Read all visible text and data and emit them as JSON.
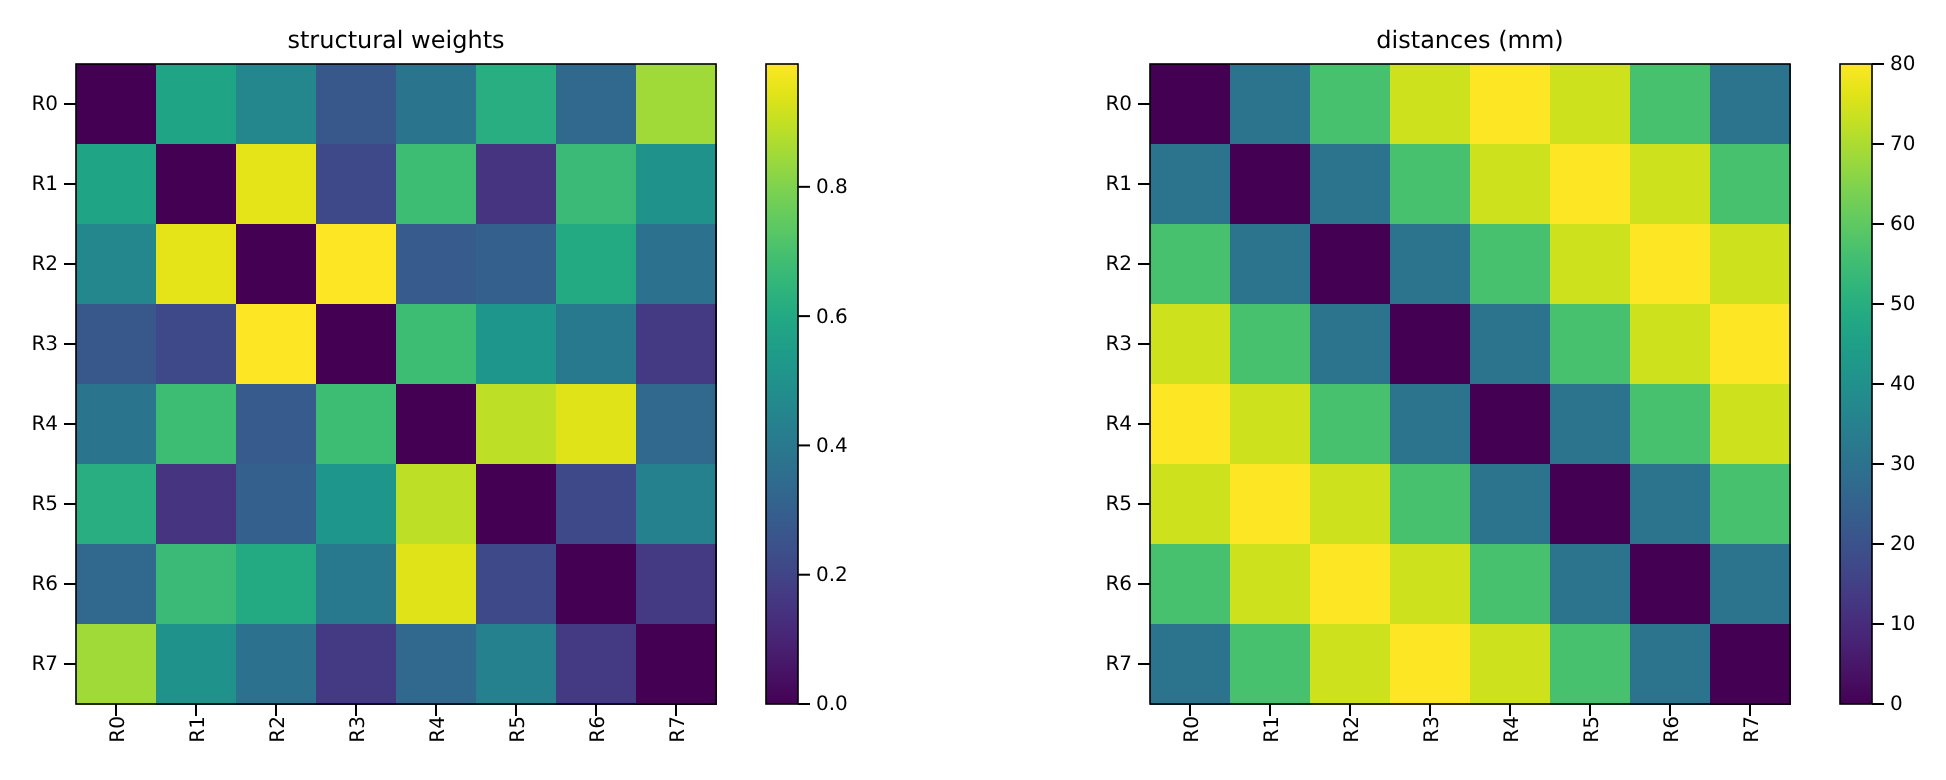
{
  "chart_data": [
    {
      "type": "heatmap",
      "title": "structural weights",
      "categories": [
        "R0",
        "R1",
        "R2",
        "R3",
        "R4",
        "R5",
        "R6",
        "R7"
      ],
      "y_categories": [
        "R0",
        "R1",
        "R2",
        "R3",
        "R4",
        "R5",
        "R6",
        "R7"
      ],
      "cells": [
        [
          0,
          0.58,
          0.46,
          0.27,
          0.38,
          0.62,
          0.33,
          0.85
        ],
        [
          0.58,
          0,
          0.95,
          0.22,
          0.68,
          0.15,
          0.67,
          0.5
        ],
        [
          0.46,
          0.95,
          0,
          0.99,
          0.28,
          0.3,
          0.6,
          0.37
        ],
        [
          0.27,
          0.22,
          0.99,
          0,
          0.68,
          0.52,
          0.4,
          0.17
        ],
        [
          0.38,
          0.68,
          0.28,
          0.68,
          0,
          0.89,
          0.94,
          0.33
        ],
        [
          0.62,
          0.15,
          0.3,
          0.52,
          0.89,
          0,
          0.22,
          0.43
        ],
        [
          0.33,
          0.67,
          0.6,
          0.4,
          0.94,
          0.22,
          0,
          0.17
        ],
        [
          0.85,
          0.5,
          0.37,
          0.17,
          0.33,
          0.43,
          0.17,
          0
        ]
      ],
      "clim": [
        0,
        0.99
      ],
      "cticks": [
        {
          "value": 0,
          "label": "0.0"
        },
        0.2,
        0.4,
        0.6,
        0.8
      ]
    },
    {
      "type": "heatmap",
      "title": "distances (mm)",
      "categories": [
        "R0",
        "R1",
        "R2",
        "R3",
        "R4",
        "R5",
        "R6",
        "R7"
      ],
      "y_categories": [
        "R0",
        "R1",
        "R2",
        "R3",
        "R4",
        "R5",
        "R6",
        "R7"
      ],
      "cells": [
        [
          0,
          30.6,
          56.6,
          73.9,
          80,
          73.9,
          56.6,
          30.6
        ],
        [
          30.6,
          0,
          30.6,
          56.6,
          73.9,
          80,
          73.9,
          56.6
        ],
        [
          56.6,
          30.6,
          0,
          30.6,
          56.6,
          73.9,
          80,
          73.9
        ],
        [
          73.9,
          56.6,
          30.6,
          0,
          30.6,
          56.6,
          73.9,
          80
        ],
        [
          80,
          73.9,
          56.6,
          30.6,
          0,
          30.6,
          56.6,
          73.9
        ],
        [
          73.9,
          80,
          73.9,
          56.6,
          30.6,
          0,
          30.6,
          56.6
        ],
        [
          56.6,
          73.9,
          80,
          73.9,
          56.6,
          30.6,
          0,
          30.6
        ],
        [
          30.6,
          56.6,
          73.9,
          80,
          73.9,
          56.6,
          30.6,
          0
        ]
      ],
      "clim": [
        0,
        80
      ],
      "cticks": [
        0,
        10,
        20,
        30,
        40,
        50,
        60,
        70,
        80
      ]
    }
  ]
}
